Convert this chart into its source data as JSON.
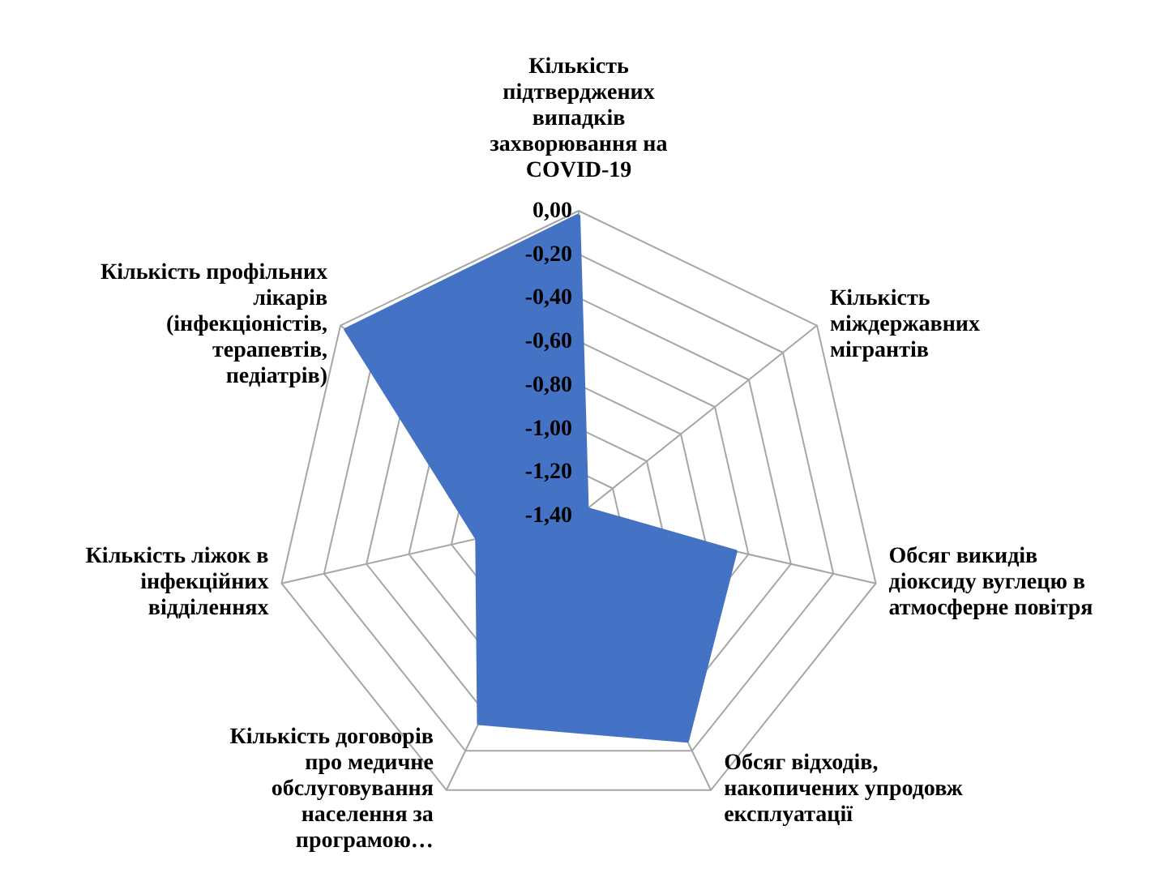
{
  "chart_data": {
    "type": "radar",
    "categories": [
      "Кількість підтверджених випадків захворювання на COVID-19",
      "Кількість міждержавних мігрантів",
      "Обсяг викидів діоксиду вуглецю в атмосферне повітря",
      "Обсяг відходів, накопичених упродовж експлуатації",
      "Кількість договорів про медичне обслуговування населення за програмою…",
      "Кількість ліжок в інфекційних відділеннях",
      "Кількість профільних лікарів (інфекціоністів, терапевтів, педіатрів)"
    ],
    "series": [
      {
        "color": "#4472c4",
        "values": [
          -0.02,
          -1.35,
          -0.66,
          -0.25,
          -0.34,
          -0.92,
          -0.03
        ]
      }
    ],
    "ylim": [
      -1.4,
      0.0
    ],
    "yticks": [
      {
        "value": 0.0,
        "label": "0,00"
      },
      {
        "value": -0.2,
        "label": "-0,20"
      },
      {
        "value": -0.4,
        "label": "-0,40"
      },
      {
        "value": -0.6,
        "label": "-0,60"
      },
      {
        "value": -0.8,
        "label": "-0,80"
      },
      {
        "value": -1.0,
        "label": "-1,00"
      },
      {
        "value": -1.2,
        "label": "-1,20"
      },
      {
        "value": -1.4,
        "label": "-1,40"
      }
    ],
    "grid": true
  }
}
